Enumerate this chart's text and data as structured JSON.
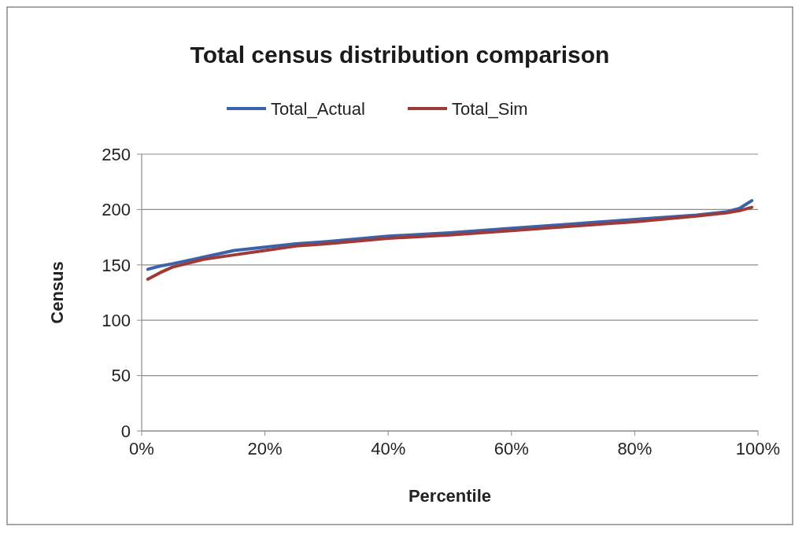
{
  "chart_data": {
    "type": "line",
    "title": "Total census distribution comparison",
    "xlabel": "Percentile",
    "ylabel": "Census",
    "x": [
      1,
      3,
      5,
      10,
      15,
      20,
      25,
      30,
      40,
      50,
      60,
      70,
      80,
      90,
      95,
      97,
      99
    ],
    "series": [
      {
        "name": "Total_Actual",
        "color": "#3a62ad",
        "values": [
          146,
          149,
          151,
          157,
          163,
          166,
          169,
          171,
          176,
          179,
          183,
          187,
          191,
          195,
          198,
          201,
          208
        ]
      },
      {
        "name": "Total_Sim",
        "color": "#9e3a38",
        "values": [
          137,
          143,
          148,
          155,
          159,
          163,
          167,
          169,
          174,
          177,
          181,
          185,
          189,
          194,
          197,
          199,
          202
        ]
      }
    ],
    "xlim": [
      0,
      100
    ],
    "xticks": [
      {
        "value": 0,
        "label": "0%"
      },
      {
        "value": 20,
        "label": "20%"
      },
      {
        "value": 40,
        "label": "40%"
      },
      {
        "value": 60,
        "label": "60%"
      },
      {
        "value": 80,
        "label": "80%"
      },
      {
        "value": 100,
        "label": "100%"
      }
    ],
    "ylim": [
      0,
      250
    ],
    "yticks": [
      0,
      50,
      100,
      150,
      200,
      250
    ],
    "grid": "y",
    "legend": "top",
    "marker": "none",
    "line_style": "solid"
  }
}
